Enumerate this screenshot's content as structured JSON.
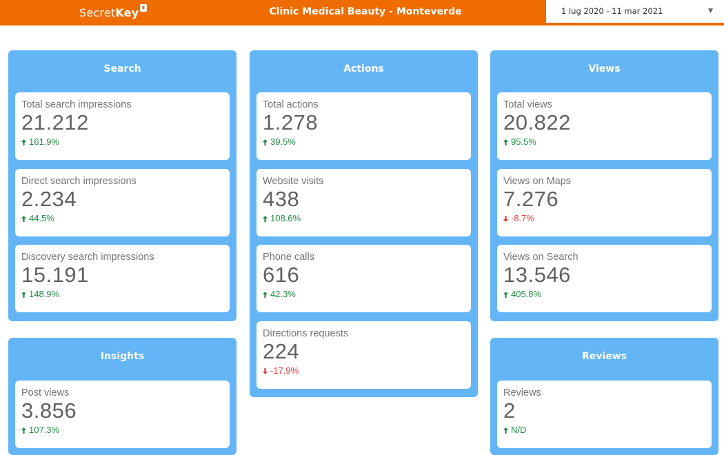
{
  "header": {
    "logo_text_light": "Secret",
    "logo_text_bold": "Key",
    "title": "Clinic Medical Beauty - Monteverde",
    "date_range": "1 lug 2020 - 11 mar 2021",
    "accent_color": "#ef6c00"
  },
  "panels": {
    "search": {
      "title": "Search",
      "cards": [
        {
          "label": "Total search impressions",
          "value": "21.212",
          "delta": "161.9%",
          "trend": "up"
        },
        {
          "label": "Direct search impressions",
          "value": "2.234",
          "delta": "44.5%",
          "trend": "up"
        },
        {
          "label": "Discovery search impressions",
          "value": "15.191",
          "delta": "148.9%",
          "trend": "up"
        }
      ]
    },
    "actions": {
      "title": "Actions",
      "cards": [
        {
          "label": "Total actions",
          "value": "1.278",
          "delta": "39.5%",
          "trend": "up"
        },
        {
          "label": "Website visits",
          "value": "438",
          "delta": "108.6%",
          "trend": "up"
        },
        {
          "label": "Phone calls",
          "value": "616",
          "delta": "42.3%",
          "trend": "up"
        },
        {
          "label": "Directions requests",
          "value": "224",
          "delta": "-17.9%",
          "trend": "down"
        }
      ]
    },
    "views": {
      "title": "Views",
      "cards": [
        {
          "label": "Total views",
          "value": "20.822",
          "delta": "95.5%",
          "trend": "up"
        },
        {
          "label": "Views on Maps",
          "value": "7.276",
          "delta": "-8.7%",
          "trend": "down"
        },
        {
          "label": "Views on Search",
          "value": "13.546",
          "delta": "405.8%",
          "trend": "up"
        }
      ]
    },
    "insights": {
      "title": "Insights",
      "cards": [
        {
          "label": "Post views",
          "value": "3.856",
          "delta": "107.3%",
          "trend": "up"
        }
      ]
    },
    "reviews": {
      "title": "Reviews",
      "cards": [
        {
          "label": "Reviews",
          "value": "2",
          "delta": "N/D",
          "trend": "up"
        }
      ]
    }
  },
  "colors": {
    "panel": "#64b5f6",
    "up": "#1e8e3e",
    "down": "#e53935"
  }
}
